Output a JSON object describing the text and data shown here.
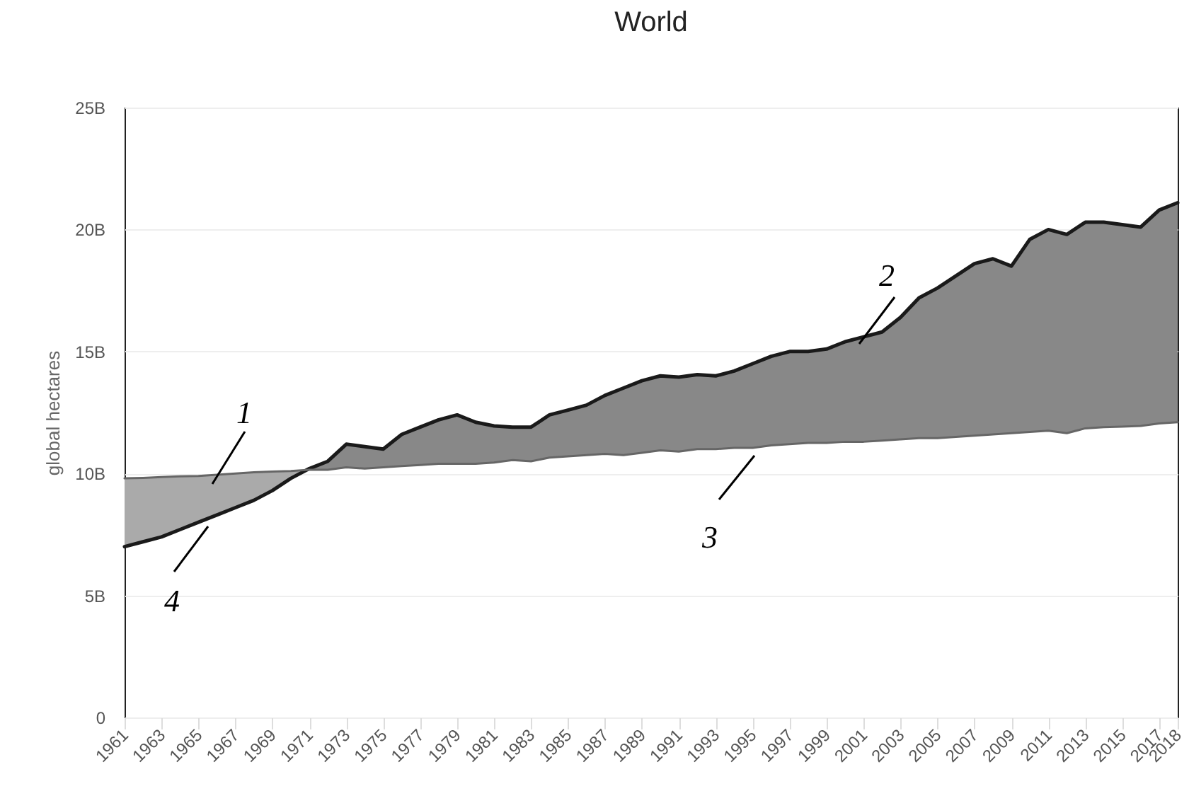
{
  "chart_data": {
    "type": "area",
    "title": "World",
    "ylabel": "global hectares",
    "x": [
      1961,
      1962,
      1963,
      1964,
      1965,
      1966,
      1967,
      1968,
      1969,
      1970,
      1971,
      1972,
      1973,
      1974,
      1975,
      1976,
      1977,
      1978,
      1979,
      1980,
      1981,
      1982,
      1983,
      1984,
      1985,
      1986,
      1987,
      1988,
      1989,
      1990,
      1991,
      1992,
      1993,
      1994,
      1995,
      1996,
      1997,
      1998,
      1999,
      2000,
      2001,
      2002,
      2003,
      2004,
      2005,
      2006,
      2007,
      2008,
      2009,
      2010,
      2011,
      2012,
      2013,
      2014,
      2015,
      2016,
      2017,
      2018
    ],
    "series": [
      {
        "color": "#1a1a1a",
        "values": [
          7000000000.0,
          7200000000.0,
          7400000000.0,
          7700000000.0,
          8000000000.0,
          8300000000.0,
          8600000000.0,
          8900000000.0,
          9300000000.0,
          9800000000.0,
          10200000000.0,
          10500000000.0,
          11200000000.0,
          11100000000.0,
          11000000000.0,
          11600000000.0,
          11900000000.0,
          12200000000.0,
          12400000000.0,
          12100000000.0,
          11950000000.0,
          11900000000.0,
          11900000000.0,
          12400000000.0,
          12600000000.0,
          12800000000.0,
          13200000000.0,
          13500000000.0,
          13800000000.0,
          14000000000.0,
          13950000000.0,
          14050000000.0,
          14000000000.0,
          14200000000.0,
          14500000000.0,
          14800000000.0,
          15000000000.0,
          15000000000.0,
          15100000000.0,
          15400000000.0,
          15600000000.0,
          15800000000.0,
          16400000000.0,
          17200000000.0,
          17600000000.0,
          18100000000.0,
          18600000000.0,
          18800000000.0,
          18500000000.0,
          19600000000.0,
          20000000000.0,
          19800000000.0,
          20300000000.0,
          20300000000.0,
          20200000000.0,
          20100000000.0,
          20800000000.0,
          21100000000.0
        ]
      },
      {
        "color": "#666666",
        "values": [
          9800000000.0,
          9820000000.0,
          9850000000.0,
          9880000000.0,
          9900000000.0,
          9950000000.0,
          10000000000.0,
          10050000000.0,
          10080000000.0,
          10100000000.0,
          10150000000.0,
          10150000000.0,
          10250000000.0,
          10200000000.0,
          10250000000.0,
          10300000000.0,
          10350000000.0,
          10400000000.0,
          10400000000.0,
          10400000000.0,
          10450000000.0,
          10550000000.0,
          10500000000.0,
          10650000000.0,
          10700000000.0,
          10750000000.0,
          10800000000.0,
          10750000000.0,
          10850000000.0,
          10950000000.0,
          10900000000.0,
          11000000000.0,
          11000000000.0,
          11050000000.0,
          11050000000.0,
          11150000000.0,
          11200000000.0,
          11250000000.0,
          11250000000.0,
          11300000000.0,
          11300000000.0,
          11350000000.0,
          11400000000.0,
          11450000000.0,
          11450000000.0,
          11500000000.0,
          11550000000.0,
          11600000000.0,
          11650000000.0,
          11700000000.0,
          11750000000.0,
          11650000000.0,
          11850000000.0,
          11900000000.0,
          11920000000.0,
          11950000000.0,
          12050000000.0,
          12100000000.0
        ]
      }
    ],
    "colors": [
      "#aaaaaa",
      "#888888"
    ],
    "xlim": [
      1961,
      2018
    ],
    "xticks": [
      1961,
      1963,
      1965,
      1967,
      1969,
      1971,
      1973,
      1975,
      1977,
      1979,
      1981,
      1983,
      1985,
      1987,
      1989,
      1991,
      1993,
      1995,
      1997,
      1999,
      2001,
      2003,
      2005,
      2007,
      2009,
      2011,
      2013,
      2015,
      2017,
      2018
    ],
    "ylim": [
      0,
      25000000000
    ],
    "yticks": [
      {
        "value": 0,
        "label": "0"
      },
      {
        "value": 5000000000,
        "label": "5B"
      },
      {
        "value": 10000000000,
        "label": "10B"
      },
      {
        "value": 15000000000,
        "label": "15B"
      },
      {
        "value": 20000000000,
        "label": "20B"
      },
      {
        "value": 25000000000,
        "label": "25B"
      }
    ],
    "grid": "y",
    "annotations": [
      "1",
      "2",
      "3",
      "4"
    ]
  }
}
